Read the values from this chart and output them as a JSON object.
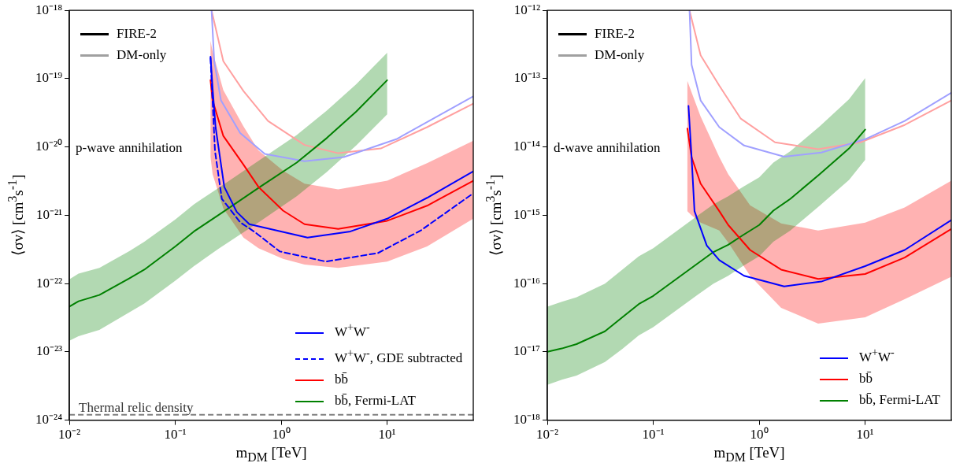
{
  "chart_data": [
    {
      "type": "line",
      "xlabel": "m$_{DM}$ [TeV]",
      "ylabel": "⟨σv⟩ [cm$^{3}$s$^{-1}$]",
      "log": "xy",
      "grid": false,
      "legend": "bottom right",
      "xlim": [
        0.01,
        65
      ],
      "ylim": [
        1e-24,
        1e-18
      ],
      "xticks": [
        {
          "value": 0.01,
          "label": "10⁻²"
        },
        {
          "value": 0.1,
          "label": "10⁻¹"
        },
        {
          "value": 1,
          "label": "10⁰"
        },
        {
          "value": 10,
          "label": "10¹"
        }
      ],
      "yticks": [
        {
          "value": 1e-24,
          "label": "10⁻²⁴"
        },
        {
          "value": 1e-23,
          "label": "10⁻²³"
        },
        {
          "value": 1e-22,
          "label": "10⁻²²"
        },
        {
          "value": 1e-21,
          "label": "10⁻²¹"
        },
        {
          "value": 1e-20,
          "label": "10⁻²⁰"
        },
        {
          "value": 1e-19,
          "label": "10⁻¹⁹"
        },
        {
          "value": 1e-18,
          "label": "10⁻¹⁸"
        }
      ],
      "annotations": [
        "p-wave annihilation",
        "FIRE-2",
        "DM-only"
      ],
      "ref_lines": [
        {
          "axis": "y",
          "value": 1.2e-24,
          "label": "Thermal relic density",
          "color": "#808080",
          "line_style": "dashed"
        }
      ],
      "series": [
        {
          "name": "W$^{+}$W$^{-}$",
          "color": "#0000ff",
          "x": [
            0.215,
            0.225,
            0.24,
            0.29,
            0.38,
            0.5,
            1.77,
            4.5,
            10,
            23.8,
            65
          ],
          "values": [
            2.1e-19,
            7.2e-20,
            1.95e-20,
            2.6e-21,
            1.12e-21,
            7.4e-22,
            4.7e-22,
            5.8e-22,
            8.9e-22,
            1.8e-21,
            4.4e-21
          ]
        },
        {
          "name": "W$^{+}$W$^{-}$, GDE subtracted",
          "color": "#0000ff",
          "line_style": "dashed",
          "x": [
            0.215,
            0.237,
            0.275,
            0.41,
            0.57,
            0.97,
            2.64,
            8.2,
            20.8,
            65
          ],
          "values": [
            2e-19,
            8.7e-21,
            1.74e-21,
            7.9e-22,
            5.6e-22,
            2.95e-22,
            2.1e-22,
            2.8e-22,
            6e-22,
            2.1e-21
          ]
        },
        {
          "name": "bb̄",
          "color": "#ff0000",
          "x": [
            0.215,
            0.225,
            0.284,
            0.44,
            0.61,
            1.04,
            1.66,
            3.45,
            10,
            23.8,
            65
          ],
          "values": [
            9.5e-20,
            4.8e-20,
            1.45e-20,
            5.5e-21,
            2.6e-21,
            1.17e-21,
            7.4e-22,
            6.3e-22,
            8.3e-22,
            1.38e-21,
            3.2e-21
          ],
          "upper": [
            3.6e-19,
            2.5e-19,
            6.8e-20,
            2e-20,
            8.9e-21,
            4.5e-21,
            2.9e-21,
            2.4e-21,
            3.2e-21,
            5.8e-21,
            1.23e-20
          ],
          "lower": [
            7.1e-21,
            4e-21,
            1.26e-21,
            4.7e-22,
            3.3e-22,
            2.3e-22,
            1.9e-22,
            1.7e-22,
            2.1e-22,
            3.5e-22,
            8.9e-22
          ]
        },
        {
          "name": "bb̄, Fermi-LAT",
          "color": "#008000",
          "x": [
            0.01,
            0.0122,
            0.0192,
            0.037,
            0.051,
            0.1,
            0.15,
            0.254,
            0.63,
            1.4,
            2.69,
            5.1,
            10
          ],
          "values": [
            4.6e-23,
            5.5e-23,
            6.8e-23,
            1.2e-22,
            1.6e-22,
            3.5e-22,
            5.8e-22,
            1e-21,
            2.6e-21,
            5.9e-21,
            1.35e-20,
            3.3e-20,
            9.5e-20
          ],
          "upper": [
            1.15e-22,
            1.4e-22,
            1.7e-22,
            3e-22,
            4.1e-22,
            8.7e-22,
            1.45e-21,
            2.5e-21,
            6.5e-21,
            1.5e-20,
            3.4e-20,
            8.3e-20,
            2.4e-19
          ],
          "lower": [
            1.45e-23,
            1.7e-23,
            2.1e-23,
            3.8e-23,
            5.1e-23,
            1.1e-22,
            1.8e-22,
            3.2e-22,
            8.1e-22,
            1.9e-21,
            4.3e-21,
            1.05e-20,
            3e-20
          ]
        },
        {
          "color": "#a0a0ff",
          "x": [
            0.22,
            0.233,
            0.27,
            0.41,
            0.7,
            1.66,
            3.9,
            12.2,
            65
          ],
          "values": [
            1e-18,
            1.8e-19,
            4.8e-20,
            1.6e-20,
            7.9e-21,
            6.2e-21,
            7.1e-21,
            1.3e-20,
            5.5e-20
          ]
        },
        {
          "color": "#ffa0a0",
          "x": [
            0.22,
            0.284,
            0.44,
            0.75,
            1.66,
            3.45,
            8.7,
            23.8,
            65
          ],
          "values": [
            1e-18,
            1.8e-19,
            6.6e-20,
            2.4e-20,
            1.07e-20,
            8.1e-21,
            9.5e-21,
            1.95e-20,
            4.3e-20
          ]
        }
      ]
    },
    {
      "type": "line",
      "xlabel": "m$_{DM}$ [TeV]",
      "ylabel": "⟨σv⟩ [cm$^{3}$s$^{-1}$]",
      "log": "xy",
      "grid": false,
      "legend": "bottom right",
      "xlim": [
        0.01,
        65
      ],
      "ylim": [
        1e-18,
        1e-12
      ],
      "xticks": [
        {
          "value": 0.01,
          "label": "10⁻²"
        },
        {
          "value": 0.1,
          "label": "10⁻¹"
        },
        {
          "value": 1,
          "label": "10⁰"
        },
        {
          "value": 10,
          "label": "10¹"
        }
      ],
      "yticks": [
        {
          "value": 1e-18,
          "label": "10⁻¹⁸"
        },
        {
          "value": 1e-17,
          "label": "10⁻¹⁷"
        },
        {
          "value": 1e-16,
          "label": "10⁻¹⁶"
        },
        {
          "value": 1e-15,
          "label": "10⁻¹⁵"
        },
        {
          "value": 1e-14,
          "label": "10⁻¹⁴"
        },
        {
          "value": 1e-13,
          "label": "10⁻¹³"
        },
        {
          "value": 1e-12,
          "label": "10⁻¹²"
        }
      ],
      "annotations": [
        "d-wave annihilation",
        "FIRE-2",
        "DM-only"
      ],
      "series": [
        {
          "name": "W$^{+}$W$^{-}$",
          "color": "#0000ff",
          "x": [
            0.215,
            0.23,
            0.245,
            0.32,
            0.42,
            0.72,
            1.72,
            3.86,
            10,
            23.6,
            65
          ],
          "values": [
            4e-14,
            7.1e-15,
            1.15e-15,
            3.6e-16,
            2.2e-16,
            1.3e-16,
            9.1e-17,
            1.07e-16,
            1.8e-16,
            3.1e-16,
            8.5e-16
          ]
        },
        {
          "name": "bb̄",
          "color": "#ff0000",
          "x": [
            0.21,
            0.23,
            0.28,
            0.42,
            0.51,
            0.82,
            1.61,
            3.6,
            10,
            23.6,
            65
          ],
          "values": [
            1.86e-14,
            7.1e-15,
            2.9e-15,
            1.15e-15,
            7.2e-16,
            3.1e-16,
            1.6e-16,
            1.17e-16,
            1.38e-16,
            2.4e-16,
            6.3e-16
          ],
          "upper": [
            9.3e-14,
            6.3e-14,
            2.8e-14,
            7.1e-15,
            4e-15,
            1.4e-15,
            7.6e-16,
            6e-16,
            7.8e-16,
            1.3e-15,
            3.2e-15
          ],
          "lower": [
            1.15e-15,
            1e-15,
            7.8e-16,
            6e-16,
            4e-16,
            1.3e-16,
            4.4e-17,
            2.6e-17,
            3.2e-17,
            5.9e-17,
            1.26e-16
          ]
        },
        {
          "name": "bb̄, Fermi-LAT",
          "color": "#008000",
          "x": [
            0.01,
            0.0137,
            0.0189,
            0.035,
            0.051,
            0.073,
            0.1,
            0.26,
            0.37,
            0.51,
            0.7,
            1.0,
            1.36,
            1.97,
            3.72,
            7.05,
            10
          ],
          "values": [
            1e-17,
            1.12e-17,
            1.3e-17,
            2e-17,
            3.2e-17,
            5e-17,
            6.6e-17,
            1.95e-16,
            2.9e-16,
            3.7e-16,
            5.1e-16,
            7.2e-16,
            1.17e-15,
            1.74e-15,
            4e-15,
            9.5e-15,
            1.8e-14
          ],
          "upper": [
            4.6e-17,
            5.4e-17,
            6.3e-17,
            1e-16,
            1.6e-16,
            2.5e-16,
            3.3e-16,
            9.8e-16,
            1.45e-15,
            1.9e-15,
            2.6e-15,
            3.6e-15,
            5.9e-15,
            8.7e-15,
            2e-14,
            5e-14,
            1.02e-13
          ],
          "lower": [
            3.3e-18,
            3.9e-18,
            4.5e-18,
            7.1e-18,
            1.1e-17,
            1.74e-17,
            2.3e-17,
            6.8e-17,
            1e-16,
            1.3e-16,
            1.8e-16,
            2.5e-16,
            4.1e-16,
            6e-16,
            1.38e-15,
            3.3e-15,
            6.5e-15
          ]
        },
        {
          "color": "#a0a0ff",
          "x": [
            0.22,
            0.23,
            0.28,
            0.42,
            0.72,
            1.72,
            3.86,
            10,
            23.6,
            65
          ],
          "values": [
            1e-12,
            1.6e-13,
            4.8e-14,
            1.95e-14,
            1.05e-14,
            7.2e-15,
            8.3e-15,
            1.3e-14,
            2.4e-14,
            6.2e-14
          ]
        },
        {
          "color": "#ffa0a0",
          "x": [
            0.22,
            0.28,
            0.42,
            0.67,
            1.41,
            3.6,
            9.0,
            23.6,
            65
          ],
          "values": [
            1e-12,
            2.2e-13,
            7.9e-14,
            2.6e-14,
            1.17e-14,
            9.3e-15,
            1.17e-14,
            2.1e-14,
            4.8e-14
          ]
        }
      ]
    }
  ]
}
